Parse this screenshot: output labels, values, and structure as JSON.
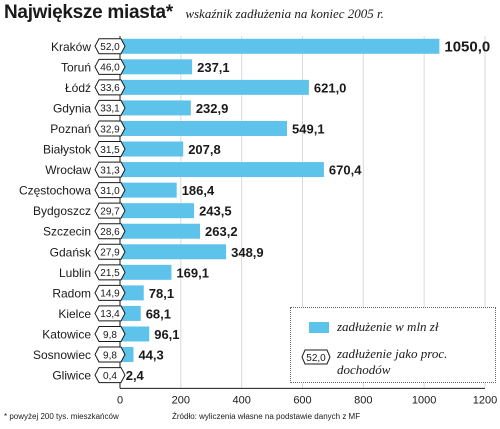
{
  "header": {
    "title": "Największe miasta*",
    "subtitle": "wskaźnik zadłużenia na koniec 2005 r."
  },
  "footnotes": {
    "left": "* powyżej 200 tys. mieszkańców",
    "right": "Źródło: wyliczenia własne na podstawie danych z MF"
  },
  "legend": {
    "bar_label": "zadłużenie w mln zł",
    "hex_sample": "52,0",
    "hex_label_line1": "zadłużenie jako proc.",
    "hex_label_line2": "dochodów"
  },
  "colors": {
    "bar": "#5ec3ea",
    "text": "#1a1a1a",
    "grid": "#d9d9d9"
  },
  "chart_data": {
    "type": "bar",
    "orientation": "horizontal",
    "categories": [
      "Kraków",
      "Toruń",
      "Łódź",
      "Gdynia",
      "Poznań",
      "Białystok",
      "Wrocław",
      "Częstochowa",
      "Bydgoszcz",
      "Szczecin",
      "Gdańsk",
      "Lublin",
      "Radom",
      "Kielce",
      "Katowice",
      "Sosnowiec",
      "Gliwice"
    ],
    "series": [
      {
        "name": "zadłużenie w mln zł",
        "values": [
          1050.0,
          237.1,
          621.0,
          232.9,
          549.1,
          207.8,
          670.4,
          186.4,
          243.5,
          263.2,
          348.9,
          169.1,
          78.1,
          68.1,
          96.1,
          44.3,
          2.4
        ],
        "labels": [
          "1050,0",
          "237,1",
          "621,0",
          "232,9",
          "549,1",
          "207,8",
          "670,4",
          "186,4",
          "243,5",
          "263,2",
          "348,9",
          "169,1",
          "78,1",
          "68,1",
          "96,1",
          "44,3",
          "2,4"
        ]
      },
      {
        "name": "zadłużenie jako proc. dochodów",
        "values": [
          52.0,
          46.0,
          33.6,
          33.1,
          32.9,
          31.5,
          31.3,
          31.0,
          29.7,
          28.6,
          27.9,
          21.5,
          14.9,
          13.4,
          9.8,
          9.8,
          0.4
        ],
        "labels": [
          "52,0",
          "46,0",
          "33,6",
          "33,1",
          "32,9",
          "31,5",
          "31,3",
          "31,0",
          "29,7",
          "28,6",
          "27,9",
          "21,5",
          "14,9",
          "13,4",
          "9,8",
          "9,8",
          "0,4"
        ]
      }
    ],
    "xlim": [
      0,
      1200
    ],
    "xticks": [
      0,
      200,
      400,
      600,
      800,
      1000,
      1200
    ],
    "grid": true,
    "legend_position": "bottom-right"
  }
}
